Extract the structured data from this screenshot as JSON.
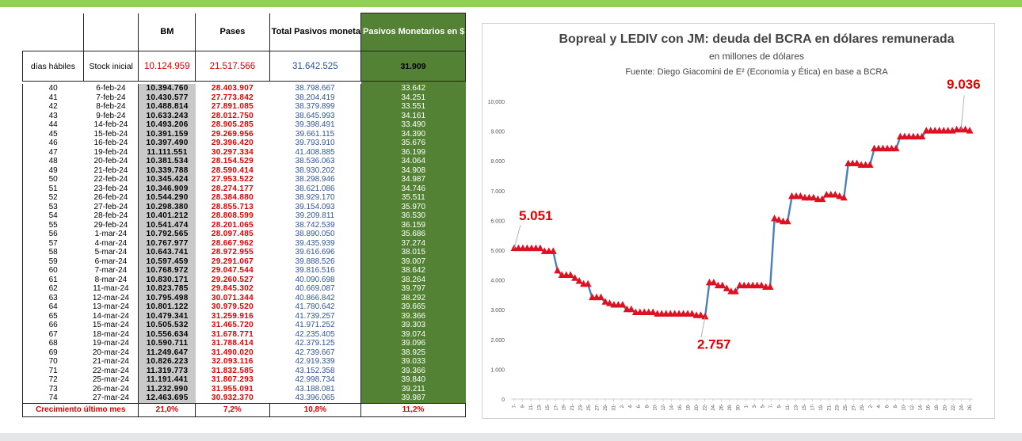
{
  "table": {
    "headers": [
      "",
      "",
      "BM",
      "Pases",
      "Total Pasivos monetarios",
      "Pasivos Monetarios en $ valuados en USD CCL"
    ],
    "initial_row": [
      "días hábiles",
      "Stock inicial",
      "10.124.959",
      "21.517.566",
      "31.642.525",
      "31.909"
    ],
    "rows": [
      [
        "40",
        "6-feb-24",
        "10.394.760",
        "28.403.907",
        "38.798.667",
        "33.642"
      ],
      [
        "41",
        "7-feb-24",
        "10.430.577",
        "27.773.842",
        "38.204.419",
        "34.251"
      ],
      [
        "42",
        "8-feb-24",
        "10.488.814",
        "27.891.085",
        "38.379.899",
        "33.551"
      ],
      [
        "43",
        "9-feb-24",
        "10.633.243",
        "28.012.750",
        "38.645.993",
        "34.161"
      ],
      [
        "44",
        "14-feb-24",
        "10.493.206",
        "28.905.285",
        "39.398.491",
        "33.490"
      ],
      [
        "45",
        "15-feb-24",
        "10.391.159",
        "29.269.956",
        "39.661.115",
        "34.390"
      ],
      [
        "46",
        "16-feb-24",
        "10.397.490",
        "29.396.420",
        "39.793.910",
        "35.676"
      ],
      [
        "47",
        "19-feb-24",
        "11.111.551",
        "30.297.334",
        "41.408.885",
        "36.199"
      ],
      [
        "48",
        "20-feb-24",
        "10.381.534",
        "28.154.529",
        "38.536.063",
        "34.064"
      ],
      [
        "49",
        "21-feb-24",
        "10.339.788",
        "28.590.414",
        "38.930.202",
        "34.908"
      ],
      [
        "50",
        "22-feb-24",
        "10.345.424",
        "27.953.522",
        "38.298.946",
        "34.987"
      ],
      [
        "51",
        "23-feb-24",
        "10.346.909",
        "28.274.177",
        "38.621.086",
        "34.746"
      ],
      [
        "52",
        "26-feb-24",
        "10.544.290",
        "28.384.880",
        "38.929.170",
        "35.511"
      ],
      [
        "53",
        "27-feb-24",
        "10.298.380",
        "28.855.713",
        "39.154.093",
        "35.970"
      ],
      [
        "54",
        "28-feb-24",
        "10.401.212",
        "28.808.599",
        "39.209.811",
        "36.530"
      ],
      [
        "55",
        "29-feb-24",
        "10.541.474",
        "28.201.065",
        "38.742.539",
        "36.159"
      ],
      [
        "56",
        "1-mar-24",
        "10.792.565",
        "28.097.485",
        "38.890.050",
        "35.686"
      ],
      [
        "57",
        "4-mar-24",
        "10.767.977",
        "28.667.962",
        "39.435.939",
        "37.274"
      ],
      [
        "58",
        "5-mar-24",
        "10.643.741",
        "28.972.955",
        "39.616.696",
        "38.015"
      ],
      [
        "59",
        "6-mar-24",
        "10.597.459",
        "29.291.067",
        "39.888.526",
        "39.007"
      ],
      [
        "60",
        "7-mar-24",
        "10.768.972",
        "29.047.544",
        "39.816.516",
        "38.642"
      ],
      [
        "61",
        "8-mar-24",
        "10.830.171",
        "29.260.527",
        "40.090.698",
        "38.264"
      ],
      [
        "62",
        "11-mar-24",
        "10.823.785",
        "29.845.302",
        "40.669.087",
        "39.797"
      ],
      [
        "63",
        "12-mar-24",
        "10.795.498",
        "30.071.344",
        "40.866.842",
        "38.292"
      ],
      [
        "64",
        "13-mar-24",
        "10.801.122",
        "30.979.520",
        "41.780.642",
        "39.665"
      ],
      [
        "65",
        "14-mar-24",
        "10.479.341",
        "31.259.916",
        "41.739.257",
        "39.366"
      ],
      [
        "66",
        "15-mar-24",
        "10.505.532",
        "31.465.720",
        "41.971.252",
        "39.303"
      ],
      [
        "67",
        "18-mar-24",
        "10.556.634",
        "31.678.771",
        "42.235.405",
        "39.074"
      ],
      [
        "68",
        "19-mar-24",
        "10.590.711",
        "31.788.414",
        "42.379.125",
        "39.096"
      ],
      [
        "69",
        "20-mar-24",
        "11.249.647",
        "31.490.020",
        "42.739.667",
        "38.925"
      ],
      [
        "70",
        "21-mar-24",
        "10.826.223",
        "32.093.116",
        "42.919.339",
        "39.033"
      ],
      [
        "71",
        "22-mar-24",
        "11.319.773",
        "31.832.585",
        "43.152.358",
        "39.366"
      ],
      [
        "72",
        "25-mar-24",
        "11.191.441",
        "31.807.293",
        "42.998.734",
        "39.840"
      ],
      [
        "73",
        "26-mar-24",
        "11.232.990",
        "31.955.091",
        "43.188.081",
        "39.211"
      ],
      [
        "74",
        "27-mar-24",
        "12.463.695",
        "30.932.370",
        "43.396.065",
        "39.987"
      ]
    ],
    "footer": [
      "Crecimiento último mes",
      "21,0%",
      "7,2%",
      "10,8%",
      "11,2%"
    ]
  },
  "chart_data": {
    "type": "line",
    "title": "Bopreal y LEDIV con JM: deuda del BCRA en dólares remunerada",
    "subtitle": "en millones de dólares",
    "source": "Fuente: Diego Giacomini de E² (Economía y Ética) en base a BCRA",
    "ylim": [
      0,
      10000
    ],
    "yticks": [
      "0",
      "1.000",
      "2.000",
      "3.000",
      "4.000",
      "5.000",
      "6.000",
      "7.000",
      "8.000",
      "9.000",
      "10,000"
    ],
    "xticks": [
      "7-",
      "9-",
      "11-",
      "13-",
      "15-",
      "17-",
      "19-",
      "21-",
      "23-",
      "25-",
      "27-",
      "29-",
      "31-",
      "2-",
      "4-",
      "6-",
      "8-",
      "10-",
      "12-",
      "14-",
      "16-",
      "18-",
      "20-",
      "22-",
      "24-",
      "26-",
      "28-",
      "30-",
      "1-",
      "3-",
      "5-",
      "7-",
      "9-",
      "11-",
      "13-",
      "15-",
      "17-",
      "19-",
      "21-",
      "23-",
      "25-",
      "27-",
      "29-",
      "2-",
      "4-",
      "6-",
      "8-",
      "10-",
      "12-",
      "14-",
      "16-",
      "18-",
      "20-",
      "22-",
      "24-",
      "26-"
    ],
    "values": [
      5051,
      5051,
      5051,
      5051,
      5051,
      5051,
      5051,
      4950,
      4950,
      4950,
      4300,
      4150,
      4150,
      4150,
      4050,
      3950,
      3850,
      3850,
      3400,
      3400,
      3400,
      3250,
      3200,
      3150,
      3150,
      3150,
      3000,
      3000,
      2900,
      2900,
      2900,
      2900,
      2900,
      2850,
      2850,
      2850,
      2850,
      2850,
      2850,
      2850,
      2850,
      2850,
      2800,
      2800,
      2757,
      3900,
      3900,
      3800,
      3800,
      3700,
      3600,
      3600,
      3800,
      3800,
      3800,
      3800,
      3800,
      3800,
      3750,
      3750,
      6050,
      6000,
      5950,
      5950,
      6800,
      6800,
      6800,
      6750,
      6750,
      6750,
      6700,
      6700,
      6850,
      6850,
      6850,
      6800,
      6750,
      7900,
      7900,
      7900,
      7850,
      7850,
      7850,
      8400,
      8400,
      8400,
      8400,
      8400,
      8400,
      8800,
      8800,
      8800,
      8800,
      8800,
      8800,
      9000,
      9000,
      9000,
      9000,
      9000,
      9000,
      9000,
      9036,
      9036,
      9036,
      9000
    ],
    "annotations": [
      {
        "label": "5.051",
        "index": 0
      },
      {
        "label": "2.757",
        "index": 44
      },
      {
        "label": "9.036",
        "index": 103
      }
    ]
  }
}
